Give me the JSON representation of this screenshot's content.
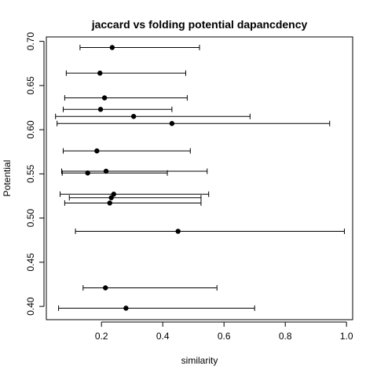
{
  "chart_data": {
    "type": "scatter",
    "title": "jaccard vs folding potential dapancdency",
    "xlabel": "similarity",
    "ylabel": "Potential",
    "xlim": [
      0.02,
      1.02
    ],
    "ylim": [
      0.385,
      0.705
    ],
    "xticks": [
      0.2,
      0.4,
      0.6,
      0.8,
      1.0
    ],
    "xtick_labels": [
      "0.2",
      "0.4",
      "0.6",
      "0.8",
      "1.0"
    ],
    "yticks": [
      0.4,
      0.45,
      0.5,
      0.55,
      0.6,
      0.65,
      0.7
    ],
    "ytick_labels": [
      "0.40",
      "0.45",
      "0.50",
      "0.55",
      "0.60",
      "0.65",
      "0.70"
    ],
    "grid": false,
    "series": [
      {
        "points": [
          {
            "x": 0.235,
            "y": 0.693,
            "xmin": 0.13,
            "xmax": 0.52
          },
          {
            "x": 0.195,
            "y": 0.664,
            "xmin": 0.085,
            "xmax": 0.475
          },
          {
            "x": 0.21,
            "y": 0.636,
            "xmin": 0.08,
            "xmax": 0.48
          },
          {
            "x": 0.197,
            "y": 0.623,
            "xmin": 0.075,
            "xmax": 0.43
          },
          {
            "x": 0.305,
            "y": 0.615,
            "xmin": 0.05,
            "xmax": 0.685
          },
          {
            "x": 0.43,
            "y": 0.607,
            "xmin": 0.055,
            "xmax": 0.945
          },
          {
            "x": 0.185,
            "y": 0.576,
            "xmin": 0.075,
            "xmax": 0.49
          },
          {
            "x": 0.215,
            "y": 0.553,
            "xmin": 0.07,
            "xmax": 0.545
          },
          {
            "x": 0.155,
            "y": 0.551,
            "xmin": 0.072,
            "xmax": 0.415
          },
          {
            "x": 0.24,
            "y": 0.527,
            "xmin": 0.065,
            "xmax": 0.55
          },
          {
            "x": 0.232,
            "y": 0.523,
            "xmin": 0.095,
            "xmax": 0.525
          },
          {
            "x": 0.227,
            "y": 0.517,
            "xmin": 0.08,
            "xmax": 0.525
          },
          {
            "x": 0.45,
            "y": 0.485,
            "xmin": 0.115,
            "xmax": 0.993
          },
          {
            "x": 0.213,
            "y": 0.421,
            "xmin": 0.14,
            "xmax": 0.577
          },
          {
            "x": 0.28,
            "y": 0.398,
            "xmin": 0.06,
            "xmax": 0.7
          }
        ]
      }
    ]
  }
}
